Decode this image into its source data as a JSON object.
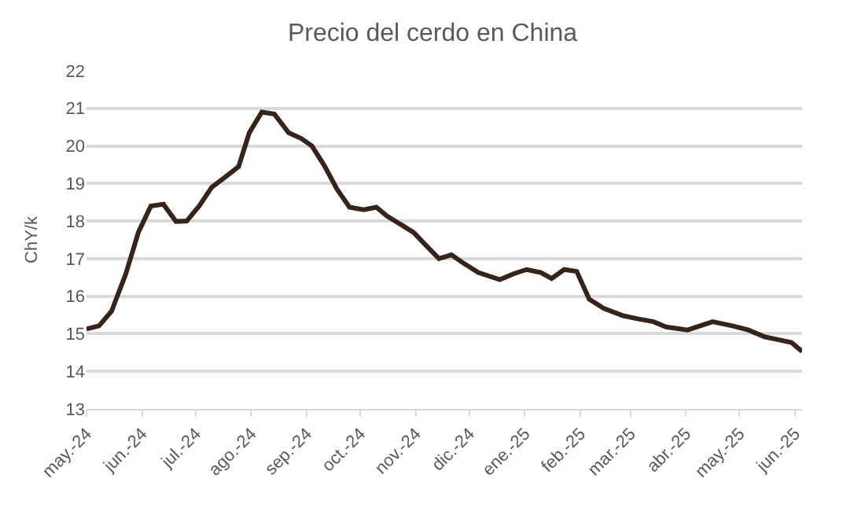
{
  "chart_data": {
    "type": "line",
    "title": "Precio del cerdo en China",
    "ylabel": "ChY/k",
    "x": [
      "2024-05-01",
      "2024-05-08",
      "2024-05-15",
      "2024-05-23",
      "2024-05-30",
      "2024-06-06",
      "2024-06-13",
      "2024-06-20",
      "2024-06-26",
      "2024-07-03",
      "2024-07-10",
      "2024-07-17",
      "2024-07-25",
      "2024-07-31",
      "2024-08-07",
      "2024-08-14",
      "2024-08-22",
      "2024-08-29",
      "2024-09-04",
      "2024-09-11",
      "2024-09-18",
      "2024-09-25",
      "2024-10-03",
      "2024-10-10",
      "2024-10-16",
      "2024-10-24",
      "2024-10-31",
      "2024-11-07",
      "2024-11-14",
      "2024-11-21",
      "2024-11-28",
      "2024-12-06",
      "2024-12-18",
      "2024-12-26",
      "2025-01-02",
      "2025-01-10",
      "2025-01-16",
      "2025-01-23",
      "2025-01-30",
      "2025-02-06",
      "2025-02-14",
      "2025-02-25",
      "2025-03-05",
      "2025-03-14",
      "2025-03-21",
      "2025-04-02",
      "2025-04-16",
      "2025-04-27",
      "2025-05-06",
      "2025-05-15",
      "2025-05-23",
      "2025-05-30",
      "2025-06-05"
    ],
    "series": [
      {
        "color": "#36241a",
        "values": [
          15.13,
          15.21,
          15.6,
          16.6,
          17.7,
          18.4,
          18.45,
          17.99,
          18.0,
          18.4,
          18.9,
          19.15,
          19.45,
          20.35,
          20.9,
          20.85,
          20.35,
          20.2,
          20.0,
          19.47,
          18.85,
          18.37,
          18.3,
          18.37,
          18.13,
          17.9,
          17.69,
          17.34,
          17.0,
          17.1,
          16.87,
          16.63,
          16.44,
          16.6,
          16.71,
          16.63,
          16.47,
          16.71,
          16.66,
          15.92,
          15.68,
          15.48,
          15.4,
          15.32,
          15.18,
          15.1,
          15.32,
          15.21,
          15.1,
          14.92,
          14.84,
          14.77,
          14.53
        ]
      }
    ],
    "xlim": [
      "2024-05-01",
      "2025-06-05"
    ],
    "xticks": [
      {
        "value": "2024-05-01",
        "label": "may.-24"
      },
      {
        "value": "2024-06-01",
        "label": "jun.-24"
      },
      {
        "value": "2024-07-01",
        "label": "jul.-24"
      },
      {
        "value": "2024-08-01",
        "label": "ago.-24"
      },
      {
        "value": "2024-09-01",
        "label": "sep.-24"
      },
      {
        "value": "2024-10-01",
        "label": "oct.-24"
      },
      {
        "value": "2024-11-01",
        "label": "nov.-24"
      },
      {
        "value": "2024-12-01",
        "label": "dic.-24"
      },
      {
        "value": "2025-01-01",
        "label": "ene.-25"
      },
      {
        "value": "2025-02-01",
        "label": "feb.-25"
      },
      {
        "value": "2025-03-01",
        "label": "mar.-25"
      },
      {
        "value": "2025-04-01",
        "label": "abr.-25"
      },
      {
        "value": "2025-05-01",
        "label": "may.-25"
      },
      {
        "value": "2025-06-01",
        "label": "jun.-25"
      }
    ],
    "ylim": [
      13,
      22
    ],
    "yticks": [
      13,
      14,
      15,
      16,
      17,
      18,
      19,
      20,
      21,
      22
    ],
    "grid": "y",
    "legend": false,
    "marker": "none",
    "line_style": "solid"
  }
}
